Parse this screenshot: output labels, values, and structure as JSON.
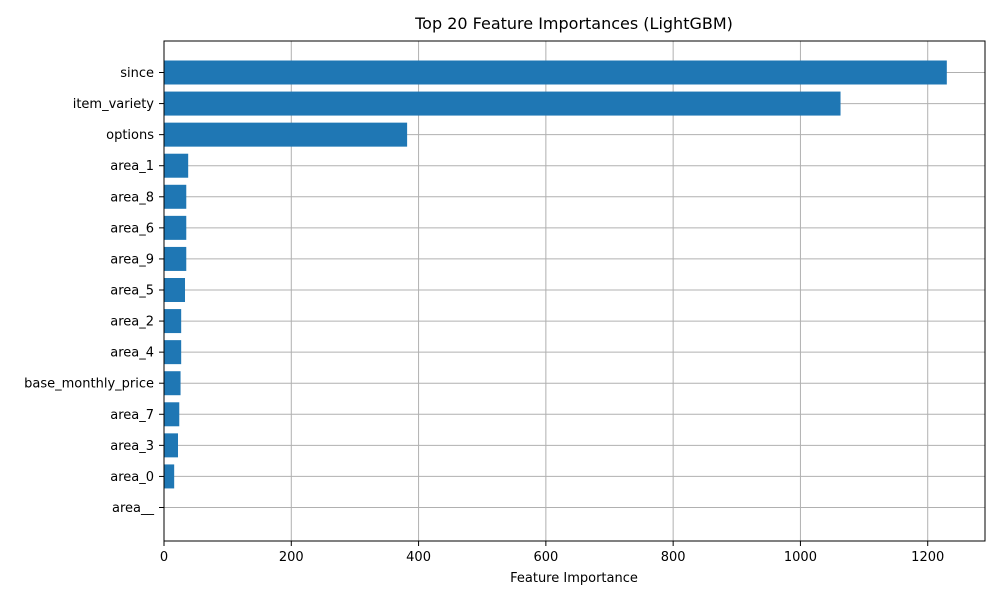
{
  "chart_data": {
    "type": "bar",
    "orientation": "horizontal",
    "title": "Top 20 Feature Importances (LightGBM)",
    "xlabel": "Feature Importance",
    "ylabel": "",
    "categories": [
      "since",
      "item_variety",
      "options",
      "area_1",
      "area_8",
      "area_6",
      "area_9",
      "area_5",
      "area_2",
      "area_4",
      "base_monthly_price",
      "area_7",
      "area_3",
      "area_0",
      "area__"
    ],
    "values": [
      1230,
      1063,
      382,
      38,
      35,
      35,
      35,
      33,
      27,
      27,
      26,
      24,
      22,
      16,
      0
    ],
    "xlim": [
      0,
      1290
    ],
    "xticks": [
      0,
      200,
      400,
      600,
      800,
      1000,
      1200
    ],
    "grid": true,
    "bar_color": "#1f77b4",
    "grid_color": "#b0b0b0"
  }
}
